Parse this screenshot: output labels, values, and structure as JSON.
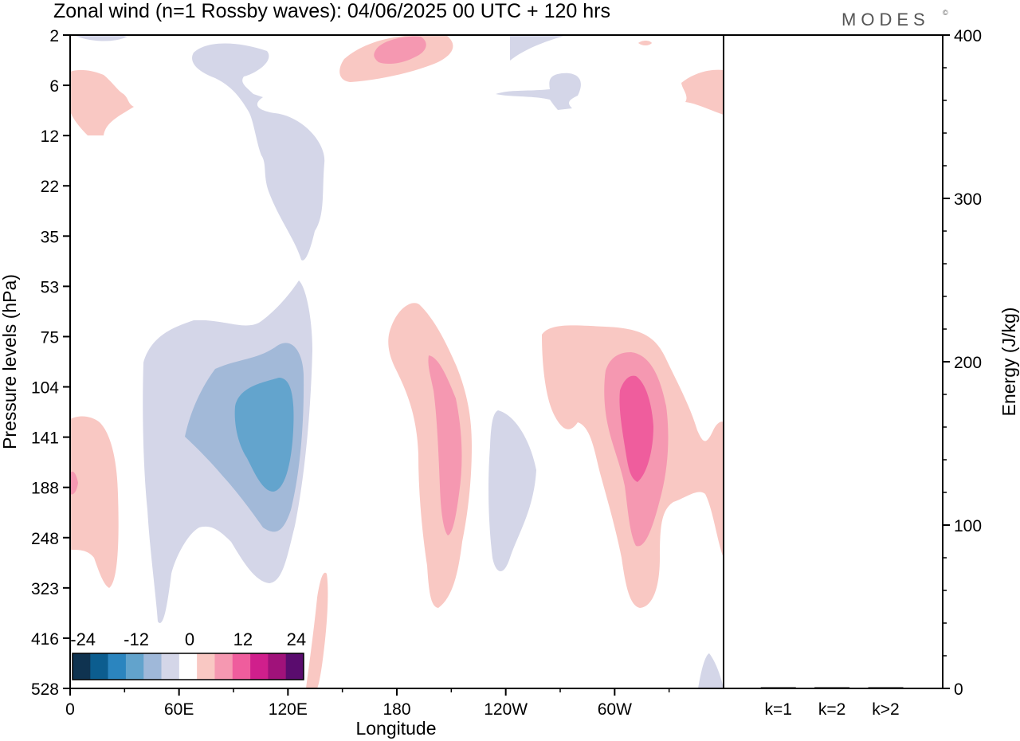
{
  "chart_data": [
    {
      "type": "heatmap",
      "title": "Zonal wind (n=1 Rossby waves):  04/06/2025  00 UTC  + 120 hrs",
      "brand": "MODES",
      "brand_mark": "©",
      "xlabel": "Longitude",
      "ylabel": "Pressure levels (hPa)",
      "x_ticks": [
        "0",
        "60E",
        "120E",
        "180",
        "120W",
        "60W"
      ],
      "y_ticks": [
        "2",
        "6",
        "12",
        "22",
        "35",
        "53",
        "75",
        "104",
        "141",
        "188",
        "248",
        "323",
        "416",
        "528"
      ],
      "y_order": "top-to-bottom",
      "grid": false,
      "colorbar": {
        "location": "bottom-left",
        "tick_labels": [
          "-24",
          "-12",
          "0",
          "12",
          "24"
        ],
        "colors": [
          "#0f3350",
          "#0c5d8f",
          "#2b85bf",
          "#62a3cc",
          "#9fb8d9",
          "#d4d6e8",
          "#ffffff",
          "#f9c8c3",
          "#f598b1",
          "#ef5d9d",
          "#d01f8c",
          "#a0127a",
          "#5a0c6e"
        ]
      },
      "contour_levels": [
        -12,
        -6,
        0,
        6,
        12,
        18
      ],
      "approx_extrema": [
        {
          "lon": "110E",
          "level": 141,
          "value": -14
        },
        {
          "lon": "170W",
          "level": 141,
          "value": 14
        },
        {
          "lon": "75W",
          "level": 125,
          "value": 15
        },
        {
          "lon": "170E",
          "level": 2,
          "value": 9
        }
      ]
    },
    {
      "type": "bar",
      "categories": [
        "k=1",
        "k=2",
        "k>2"
      ],
      "values": [
        0,
        0,
        0
      ],
      "ylabel": "Energy (J/kg)",
      "y_ticks": [
        "0",
        "100",
        "200",
        "300",
        "400"
      ],
      "ylim": [
        0,
        400
      ]
    }
  ],
  "colors": {
    "neg_1": "#d4d6e8",
    "neg_2": "#a2b9d8",
    "neg_3": "#63a4cd",
    "pos_1": "#f9c8c3",
    "pos_2": "#f598b1",
    "pos_3": "#ef5d9d"
  }
}
